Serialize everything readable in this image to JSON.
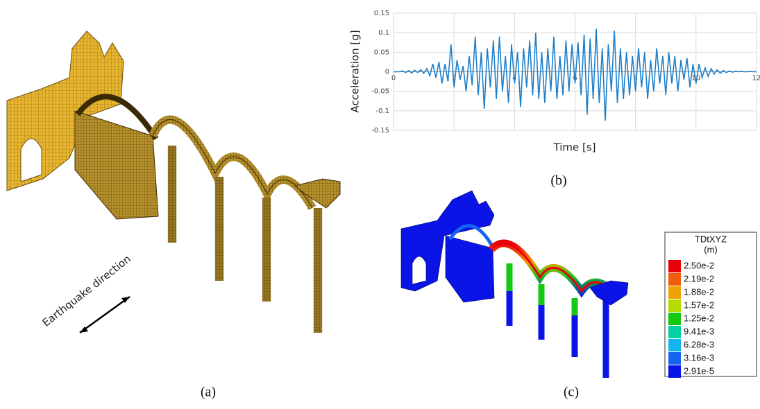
{
  "panels": {
    "a": {
      "label": "(a)",
      "annotation": "Earthquake direction"
    },
    "b": {
      "label": "(b)"
    },
    "c": {
      "label": "(c)",
      "legend": {
        "title": "TDtXYZ",
        "unit": "(m)",
        "entries": [
          {
            "label": "2.50e-2",
            "color": "#e8000b"
          },
          {
            "label": "2.19e-2",
            "color": "#f05a0a"
          },
          {
            "label": "1.88e-2",
            "color": "#f0a000"
          },
          {
            "label": "1.57e-2",
            "color": "#b4dc00"
          },
          {
            "label": "1.25e-2",
            "color": "#14c814"
          },
          {
            "label": "9.41e-3",
            "color": "#00d2a0"
          },
          {
            "label": "6.28e-3",
            "color": "#14b4f0"
          },
          {
            "label": "3.16e-3",
            "color": "#1464f0"
          },
          {
            "label": "2.91e-5",
            "color": "#0a14e6"
          }
        ]
      }
    }
  },
  "chart_data": {
    "type": "line",
    "xlabel": "Time [s]",
    "ylabel": "Acceleration [g]",
    "color": "#1f7fc8",
    "grid": true,
    "xlim": [
      0,
      12
    ],
    "xticks": [
      0,
      2,
      4,
      6,
      8,
      10,
      12
    ],
    "ylim": [
      -0.15,
      0.15
    ],
    "yticks": [
      -0.15,
      -0.1,
      -0.05,
      0,
      0.05,
      0.1,
      0.15
    ],
    "x": [
      0,
      0.1,
      0.2,
      0.3,
      0.4,
      0.5,
      0.6,
      0.7,
      0.8,
      0.9,
      1,
      1.1,
      1.2,
      1.3,
      1.4,
      1.5,
      1.6,
      1.7,
      1.8,
      1.9,
      2,
      2.1,
      2.2,
      2.3,
      2.4,
      2.5,
      2.6,
      2.7,
      2.8,
      2.9,
      3,
      3.1,
      3.2,
      3.3,
      3.4,
      3.5,
      3.6,
      3.7,
      3.8,
      3.9,
      4,
      4.1,
      4.2,
      4.3,
      4.4,
      4.5,
      4.6,
      4.7,
      4.8,
      4.9,
      5,
      5.1,
      5.2,
      5.3,
      5.4,
      5.5,
      5.6,
      5.7,
      5.8,
      5.9,
      6,
      6.1,
      6.2,
      6.3,
      6.4,
      6.5,
      6.6,
      6.7,
      6.8,
      6.9,
      7,
      7.1,
      7.2,
      7.3,
      7.4,
      7.5,
      7.6,
      7.7,
      7.8,
      7.9,
      8,
      8.1,
      8.2,
      8.3,
      8.4,
      8.5,
      8.6,
      8.7,
      8.8,
      8.9,
      9,
      9.1,
      9.2,
      9.3,
      9.4,
      9.5,
      9.6,
      9.7,
      9.8,
      9.9,
      10,
      10.1,
      10.2,
      10.3,
      10.4,
      10.5,
      10.6,
      10.7,
      10.8,
      10.9,
      11,
      11.1,
      11.2,
      11.3,
      11.4,
      11.5,
      11.6,
      11.7,
      11.8,
      11.9,
      12
    ],
    "values": [
      0,
      0,
      0,
      0.002,
      -0.002,
      0.003,
      -0.003,
      0.004,
      -0.002,
      0.005,
      -0.004,
      0.008,
      -0.01,
      0.02,
      -0.015,
      0.025,
      -0.03,
      0.02,
      -0.025,
      0.07,
      -0.04,
      0.03,
      -0.02,
      0.015,
      -0.05,
      0.04,
      -0.035,
      0.09,
      -0.06,
      0.05,
      -0.095,
      0.06,
      -0.04,
      0.08,
      -0.07,
      0.09,
      -0.05,
      0.04,
      -0.08,
      0.07,
      -0.03,
      0.05,
      -0.09,
      0.06,
      -0.04,
      0.08,
      -0.06,
      0.1,
      -0.07,
      0.05,
      -0.08,
      0.06,
      -0.05,
      0.09,
      -0.07,
      0.04,
      -0.06,
      0.08,
      -0.05,
      0.07,
      -0.03,
      0.075,
      -0.06,
      0.095,
      -0.11,
      0.085,
      -0.07,
      0.11,
      -0.08,
      0.06,
      -0.125,
      0.07,
      -0.05,
      0.105,
      -0.08,
      0.06,
      -0.07,
      0.05,
      -0.06,
      0.04,
      -0.05,
      0.06,
      -0.04,
      0.05,
      -0.07,
      0.03,
      -0.05,
      0.06,
      -0.03,
      0.04,
      -0.06,
      0.05,
      -0.03,
      0.04,
      -0.05,
      0.03,
      -0.02,
      0.035,
      -0.04,
      0.02,
      -0.03,
      0.02,
      -0.015,
      0.01,
      -0.012,
      0.008,
      -0.006,
      0.005,
      -0.004,
      0.003,
      -0.002,
      0.002,
      -0.001,
      0.001,
      0,
      0.001,
      0,
      0,
      0.001,
      0,
      0
    ]
  }
}
